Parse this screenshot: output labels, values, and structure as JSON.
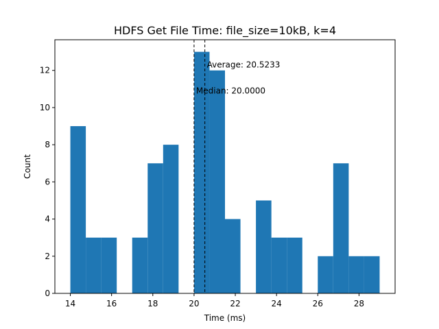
{
  "chart_data": {
    "type": "bar",
    "title": "HDFS Get File Time: file_size=10kB, k=4",
    "xlabel": "Time (ms)",
    "ylabel": "Count",
    "xlim": [
      13.25,
      29.75
    ],
    "ylim": [
      0,
      13.65
    ],
    "xticks": [
      14,
      16,
      18,
      20,
      22,
      24,
      26,
      28
    ],
    "yticks": [
      0,
      2,
      4,
      6,
      8,
      10,
      12
    ],
    "bins": [
      {
        "x0": 14.0,
        "x1": 14.75,
        "value": 9
      },
      {
        "x0": 14.75,
        "x1": 15.5,
        "value": 3
      },
      {
        "x0": 15.5,
        "x1": 16.25,
        "value": 3
      },
      {
        "x0": 16.25,
        "x1": 17.0,
        "value": 0
      },
      {
        "x0": 17.0,
        "x1": 17.75,
        "value": 3
      },
      {
        "x0": 17.75,
        "x1": 18.5,
        "value": 7
      },
      {
        "x0": 18.5,
        "x1": 19.25,
        "value": 8
      },
      {
        "x0": 19.25,
        "x1": 20.0,
        "value": 0
      },
      {
        "x0": 20.0,
        "x1": 20.75,
        "value": 13
      },
      {
        "x0": 20.75,
        "x1": 21.5,
        "value": 12
      },
      {
        "x0": 21.5,
        "x1": 22.25,
        "value": 4
      },
      {
        "x0": 22.25,
        "x1": 23.0,
        "value": 0
      },
      {
        "x0": 23.0,
        "x1": 23.75,
        "value": 5
      },
      {
        "x0": 23.75,
        "x1": 24.5,
        "value": 3
      },
      {
        "x0": 24.5,
        "x1": 25.25,
        "value": 3
      },
      {
        "x0": 25.25,
        "x1": 26.0,
        "value": 0
      },
      {
        "x0": 26.0,
        "x1": 26.75,
        "value": 2
      },
      {
        "x0": 26.75,
        "x1": 27.5,
        "value": 7
      },
      {
        "x0": 27.5,
        "x1": 28.25,
        "value": 2
      },
      {
        "x0": 28.25,
        "x1": 29.0,
        "value": 2
      }
    ],
    "bar_color": "#1f77b4",
    "vlines": [
      {
        "name": "average",
        "x": 20.5233,
        "label": "Average: 20.5233",
        "label_y": 12.3
      },
      {
        "name": "median",
        "x": 20.0,
        "label": "Median: 20.0000",
        "label_y": 10.9
      }
    ],
    "grid": false,
    "legend": "none"
  }
}
